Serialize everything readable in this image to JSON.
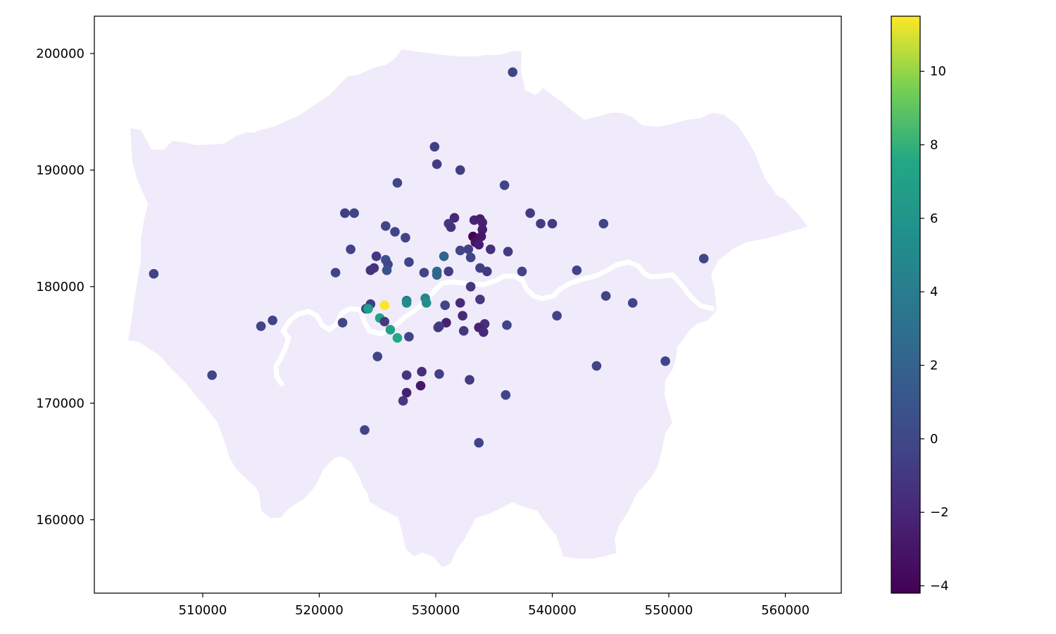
{
  "chart_data": {
    "type": "scatter",
    "title": "",
    "xlabel": "",
    "ylabel": "",
    "xlim": [
      500700,
      564800
    ],
    "ylim": [
      153700,
      203200
    ],
    "x_ticks": [
      510000,
      520000,
      530000,
      540000,
      550000,
      560000
    ],
    "y_ticks": [
      160000,
      170000,
      180000,
      190000,
      200000
    ],
    "x_tick_labels": [
      "510000",
      "520000",
      "530000",
      "540000",
      "550000",
      "560000"
    ],
    "y_tick_labels": [
      "160000",
      "170000",
      "180000",
      "190000",
      "200000"
    ],
    "grid": false,
    "legend": "none",
    "colormap": "viridis",
    "colorbar": {
      "min": -4.2,
      "max": 11.5,
      "ticks": [
        -4,
        -2,
        0,
        2,
        4,
        6,
        8,
        10
      ],
      "tick_labels": [
        "−4",
        "−2",
        "0",
        "2",
        "4",
        "6",
        "8",
        "10"
      ]
    },
    "background_region": {
      "fill": "#efebfa",
      "river_color": "#ffffff"
    },
    "points": [
      [
        536600,
        198400,
        -0.3
      ],
      [
        529900,
        192000,
        -0.6
      ],
      [
        530100,
        190500,
        -0.8
      ],
      [
        532100,
        190000,
        -0.6
      ],
      [
        526700,
        188900,
        -0.3
      ],
      [
        535900,
        188700,
        -0.3
      ],
      [
        522200,
        186300,
        -0.5
      ],
      [
        523000,
        186300,
        -0.3
      ],
      [
        538100,
        186300,
        -0.8
      ],
      [
        531600,
        185900,
        -2.0
      ],
      [
        533300,
        185700,
        -2.2
      ],
      [
        533800,
        185800,
        -2.6
      ],
      [
        534000,
        185500,
        -2.4
      ],
      [
        539000,
        185400,
        -0.8
      ],
      [
        540000,
        185400,
        -0.8
      ],
      [
        544400,
        185400,
        -0.3
      ],
      [
        531100,
        185400,
        -1.0
      ],
      [
        531300,
        185100,
        -1.3
      ],
      [
        525700,
        185200,
        -0.3
      ],
      [
        534000,
        184900,
        -2.6
      ],
      [
        526500,
        184700,
        -0.3
      ],
      [
        527400,
        184200,
        -0.3
      ],
      [
        533200,
        184300,
        -4.2
      ],
      [
        533500,
        184100,
        -3.8
      ],
      [
        533900,
        184300,
        -3.0
      ],
      [
        533400,
        183800,
        -3.2
      ],
      [
        533700,
        183600,
        -2.6
      ],
      [
        522700,
        183200,
        -0.3
      ],
      [
        532100,
        183100,
        -0.3
      ],
      [
        532800,
        183200,
        -0.5
      ],
      [
        534700,
        183200,
        -1.5
      ],
      [
        536200,
        183000,
        -0.8
      ],
      [
        530700,
        182600,
        2.2
      ],
      [
        524900,
        182600,
        -1.0
      ],
      [
        525700,
        182300,
        0.7
      ],
      [
        533000,
        182500,
        -0.3
      ],
      [
        553000,
        182400,
        -0.3
      ],
      [
        527700,
        182100,
        -0.3
      ],
      [
        525900,
        181900,
        -0.2
      ],
      [
        524700,
        181600,
        -1.2
      ],
      [
        524400,
        181400,
        -1.2
      ],
      [
        525800,
        181400,
        0.7
      ],
      [
        533800,
        181600,
        -0.5
      ],
      [
        534400,
        181300,
        -1.0
      ],
      [
        521400,
        181200,
        -0.3
      ],
      [
        529000,
        181200,
        -0.3
      ],
      [
        530100,
        181300,
        2.5
      ],
      [
        531100,
        181300,
        -0.6
      ],
      [
        537400,
        181300,
        -0.3
      ],
      [
        542100,
        181400,
        -0.3
      ],
      [
        505800,
        181100,
        -0.3
      ],
      [
        530100,
        181000,
        2.2
      ],
      [
        533000,
        180000,
        -1.0
      ],
      [
        544600,
        179200,
        -0.3
      ],
      [
        529100,
        179000,
        4.6
      ],
      [
        527500,
        178800,
        4.0
      ],
      [
        533800,
        178900,
        -1.0
      ],
      [
        546900,
        178600,
        -0.3
      ],
      [
        527500,
        178600,
        5.2
      ],
      [
        529200,
        178600,
        5.6
      ],
      [
        532100,
        178600,
        -1.8
      ],
      [
        524400,
        178500,
        -0.8
      ],
      [
        525600,
        178400,
        11.5
      ],
      [
        530800,
        178400,
        -0.3
      ],
      [
        524000,
        178100,
        0.5
      ],
      [
        524200,
        178100,
        7.0
      ],
      [
        532300,
        177500,
        -1.8
      ],
      [
        540400,
        177500,
        -0.3
      ],
      [
        525200,
        177300,
        7.2
      ],
      [
        516000,
        177100,
        -0.3
      ],
      [
        525600,
        177000,
        -0.8
      ],
      [
        530900,
        176900,
        -2.4
      ],
      [
        522000,
        176900,
        -0.3
      ],
      [
        534200,
        176800,
        -1.5
      ],
      [
        536100,
        176700,
        -0.3
      ],
      [
        515000,
        176600,
        -0.3
      ],
      [
        530300,
        176600,
        -0.3
      ],
      [
        530200,
        176500,
        -1.0
      ],
      [
        533700,
        176500,
        -2.2
      ],
      [
        526100,
        176300,
        7.0
      ],
      [
        532400,
        176200,
        -1.0
      ],
      [
        534100,
        176100,
        -1.8
      ],
      [
        527700,
        175700,
        -0.3
      ],
      [
        526700,
        175600,
        7.6
      ],
      [
        525000,
        174000,
        -0.3
      ],
      [
        549700,
        173600,
        -0.3
      ],
      [
        543800,
        173200,
        -0.3
      ],
      [
        528800,
        172700,
        -1.5
      ],
      [
        527500,
        172400,
        -1.2
      ],
      [
        530300,
        172500,
        -0.5
      ],
      [
        510800,
        172400,
        -0.3
      ],
      [
        532900,
        172000,
        -0.8
      ],
      [
        528700,
        171500,
        -2.8
      ],
      [
        527500,
        170900,
        -2.4
      ],
      [
        536000,
        170700,
        -0.3
      ],
      [
        527200,
        170200,
        -1.0
      ],
      [
        523900,
        167700,
        -0.3
      ],
      [
        533700,
        166600,
        -0.3
      ]
    ]
  }
}
